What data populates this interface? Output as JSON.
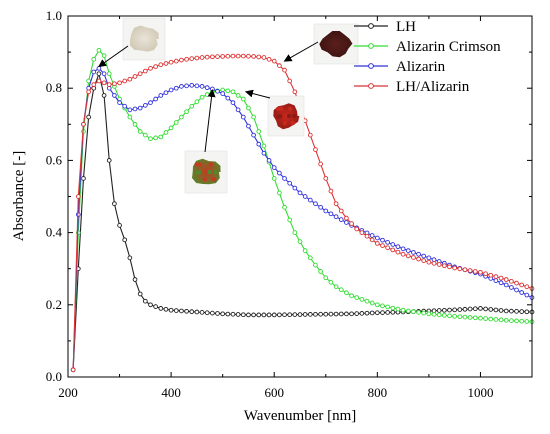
{
  "chart_data": {
    "type": "line",
    "xlabel": "Wavenumber [nm]",
    "ylabel": "Absorbance [-]",
    "xlim": [
      200,
      1100
    ],
    "ylim": [
      0.0,
      1.0
    ],
    "xticks": [
      200,
      400,
      600,
      800,
      1000
    ],
    "yticks": [
      0.0,
      0.2,
      0.4,
      0.6,
      0.8,
      1.0
    ],
    "xtick_labels": [
      "200",
      "400",
      "600",
      "800",
      "1000"
    ],
    "ytick_labels": [
      "0.0",
      "0.2",
      "0.4",
      "0.6",
      "0.8",
      "1.0"
    ],
    "legend_position": "top-right",
    "grid": false,
    "series": [
      {
        "name": "LH",
        "color": "#222222",
        "points": [
          [
            210,
            0.02
          ],
          [
            220,
            0.3
          ],
          [
            230,
            0.55
          ],
          [
            240,
            0.72
          ],
          [
            250,
            0.8
          ],
          [
            260,
            0.84
          ],
          [
            270,
            0.78
          ],
          [
            280,
            0.6
          ],
          [
            290,
            0.48
          ],
          [
            300,
            0.42
          ],
          [
            310,
            0.38
          ],
          [
            320,
            0.33
          ],
          [
            330,
            0.27
          ],
          [
            340,
            0.23
          ],
          [
            350,
            0.21
          ],
          [
            360,
            0.2
          ],
          [
            380,
            0.19
          ],
          [
            400,
            0.185
          ],
          [
            450,
            0.18
          ],
          [
            500,
            0.175
          ],
          [
            550,
            0.172
          ],
          [
            600,
            0.172
          ],
          [
            650,
            0.173
          ],
          [
            700,
            0.174
          ],
          [
            750,
            0.175
          ],
          [
            800,
            0.178
          ],
          [
            850,
            0.18
          ],
          [
            900,
            0.183
          ],
          [
            950,
            0.186
          ],
          [
            1000,
            0.19
          ],
          [
            1050,
            0.183
          ],
          [
            1100,
            0.18
          ]
        ]
      },
      {
        "name": "Alizarin Crimson",
        "color": "#33dd33",
        "points": [
          [
            210,
            0.02
          ],
          [
            220,
            0.4
          ],
          [
            230,
            0.68
          ],
          [
            240,
            0.82
          ],
          [
            250,
            0.88
          ],
          [
            260,
            0.905
          ],
          [
            270,
            0.89
          ],
          [
            280,
            0.84
          ],
          [
            300,
            0.77
          ],
          [
            320,
            0.72
          ],
          [
            340,
            0.68
          ],
          [
            360,
            0.66
          ],
          [
            380,
            0.665
          ],
          [
            400,
            0.69
          ],
          [
            420,
            0.72
          ],
          [
            440,
            0.75
          ],
          [
            460,
            0.775
          ],
          [
            480,
            0.79
          ],
          [
            500,
            0.795
          ],
          [
            520,
            0.79
          ],
          [
            540,
            0.77
          ],
          [
            560,
            0.72
          ],
          [
            580,
            0.64
          ],
          [
            600,
            0.55
          ],
          [
            620,
            0.47
          ],
          [
            640,
            0.4
          ],
          [
            660,
            0.35
          ],
          [
            680,
            0.31
          ],
          [
            700,
            0.275
          ],
          [
            720,
            0.25
          ],
          [
            750,
            0.225
          ],
          [
            800,
            0.2
          ],
          [
            850,
            0.185
          ],
          [
            900,
            0.175
          ],
          [
            950,
            0.168
          ],
          [
            1000,
            0.163
          ],
          [
            1050,
            0.157
          ],
          [
            1100,
            0.153
          ]
        ]
      },
      {
        "name": "Alizarin",
        "color": "#3333dd",
        "points": [
          [
            210,
            0.02
          ],
          [
            220,
            0.45
          ],
          [
            230,
            0.7
          ],
          [
            240,
            0.8
          ],
          [
            250,
            0.845
          ],
          [
            260,
            0.855
          ],
          [
            270,
            0.84
          ],
          [
            280,
            0.8
          ],
          [
            300,
            0.76
          ],
          [
            320,
            0.74
          ],
          [
            340,
            0.745
          ],
          [
            360,
            0.76
          ],
          [
            380,
            0.78
          ],
          [
            400,
            0.795
          ],
          [
            420,
            0.805
          ],
          [
            440,
            0.808
          ],
          [
            460,
            0.805
          ],
          [
            480,
            0.798
          ],
          [
            500,
            0.785
          ],
          [
            520,
            0.76
          ],
          [
            540,
            0.72
          ],
          [
            560,
            0.67
          ],
          [
            580,
            0.62
          ],
          [
            600,
            0.58
          ],
          [
            620,
            0.55
          ],
          [
            650,
            0.51
          ],
          [
            700,
            0.46
          ],
          [
            750,
            0.42
          ],
          [
            800,
            0.385
          ],
          [
            850,
            0.355
          ],
          [
            900,
            0.33
          ],
          [
            950,
            0.305
          ],
          [
            1000,
            0.285
          ],
          [
            1050,
            0.255
          ],
          [
            1100,
            0.22
          ]
        ]
      },
      {
        "name": "LH/Alizarin",
        "color": "#dd3333",
        "points": [
          [
            210,
            0.02
          ],
          [
            220,
            0.5
          ],
          [
            230,
            0.7
          ],
          [
            240,
            0.79
          ],
          [
            250,
            0.81
          ],
          [
            260,
            0.82
          ],
          [
            270,
            0.815
          ],
          [
            280,
            0.81
          ],
          [
            300,
            0.815
          ],
          [
            320,
            0.825
          ],
          [
            340,
            0.84
          ],
          [
            360,
            0.855
          ],
          [
            380,
            0.865
          ],
          [
            400,
            0.872
          ],
          [
            420,
            0.878
          ],
          [
            440,
            0.882
          ],
          [
            460,
            0.885
          ],
          [
            480,
            0.887
          ],
          [
            500,
            0.888
          ],
          [
            520,
            0.889
          ],
          [
            540,
            0.889
          ],
          [
            560,
            0.888
          ],
          [
            580,
            0.885
          ],
          [
            600,
            0.875
          ],
          [
            620,
            0.85
          ],
          [
            640,
            0.79
          ],
          [
            660,
            0.71
          ],
          [
            680,
            0.63
          ],
          [
            700,
            0.55
          ],
          [
            720,
            0.48
          ],
          [
            740,
            0.44
          ],
          [
            760,
            0.41
          ],
          [
            780,
            0.39
          ],
          [
            800,
            0.37
          ],
          [
            850,
            0.34
          ],
          [
            900,
            0.318
          ],
          [
            950,
            0.302
          ],
          [
            1000,
            0.29
          ],
          [
            1050,
            0.27
          ],
          [
            1100,
            0.245
          ]
        ]
      }
    ],
    "annotations": [
      {
        "name": "photo-white-powder",
        "colors": [
          "#e9e4d8",
          "#cfc6b2"
        ],
        "arrow_to": [
          260,
          0.86
        ]
      },
      {
        "name": "photo-dark-red-powder",
        "colors": [
          "#5a1f1c",
          "#3b1210"
        ],
        "arrow_to": [
          620,
          0.875
        ]
      },
      {
        "name": "photo-red-crystals",
        "colors": [
          "#c8281e",
          "#8e1a14"
        ],
        "arrow_to": [
          545,
          0.79
        ]
      },
      {
        "name": "photo-mixed-granules",
        "colors": [
          "#c43a22",
          "#4f8a2c"
        ],
        "arrow_to": [
          480,
          0.795
        ]
      }
    ]
  }
}
